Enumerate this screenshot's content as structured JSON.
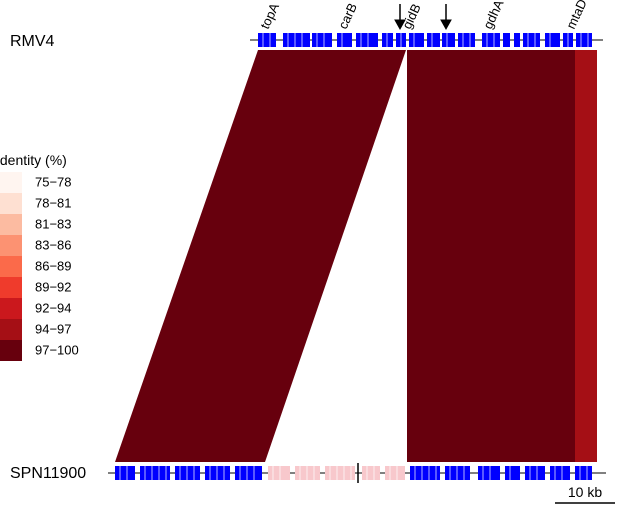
{
  "tracks": [
    {
      "name": "RMV4",
      "genes": [
        "topA",
        "carB",
        "gidB",
        "gdhA",
        "mtaD"
      ]
    },
    {
      "name": "SPN11900"
    }
  ],
  "legend": {
    "title": "Identity (%)",
    "items": [
      {
        "label": "75−78",
        "color": "#fff5f0"
      },
      {
        "label": "78−81",
        "color": "#fee0d2"
      },
      {
        "label": "81−83",
        "color": "#fcbba1"
      },
      {
        "label": "83−86",
        "color": "#fc9272"
      },
      {
        "label": "86−89",
        "color": "#fb6a4a"
      },
      {
        "label": "89−92",
        "color": "#ef3b2c"
      },
      {
        "label": "92−94",
        "color": "#cb181d"
      },
      {
        "label": "94−97",
        "color": "#a50f15"
      },
      {
        "label": "97−100",
        "color": "#67000d"
      }
    ]
  },
  "scale_bar": {
    "label": "10 kb"
  }
}
